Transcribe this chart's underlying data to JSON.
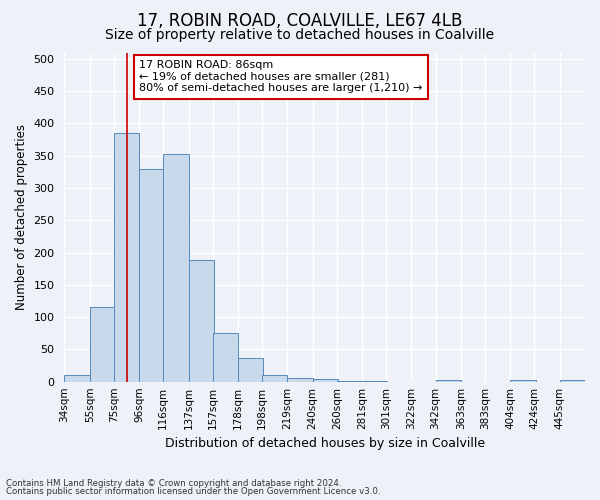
{
  "title1": "17, ROBIN ROAD, COALVILLE, LE67 4LB",
  "title2": "Size of property relative to detached houses in Coalville",
  "xlabel": "Distribution of detached houses by size in Coalville",
  "ylabel": "Number of detached properties",
  "bins": [
    34,
    55,
    75,
    96,
    116,
    137,
    157,
    178,
    198,
    219,
    240,
    260,
    281,
    301,
    322,
    342,
    363,
    383,
    404,
    424,
    445
  ],
  "values": [
    10,
    115,
    385,
    330,
    352,
    188,
    75,
    37,
    10,
    6,
    4,
    1,
    1,
    0,
    0,
    2,
    0,
    0,
    2,
    0,
    2
  ],
  "bar_color": "#c9d9ec",
  "bar_edge_color": "#5588bb",
  "vline_x": 86,
  "vline_color": "#cc0000",
  "ylim": [
    0,
    510
  ],
  "yticks": [
    0,
    50,
    100,
    150,
    200,
    250,
    300,
    350,
    400,
    450,
    500
  ],
  "annotation_text": "17 ROBIN ROAD: 86sqm\n← 19% of detached houses are smaller (281)\n80% of semi-detached houses are larger (1,210) →",
  "annotation_box_color": "#ffffff",
  "annotation_box_edge": "#cc0000",
  "footnote1": "Contains HM Land Registry data © Crown copyright and database right 2024.",
  "footnote2": "Contains public sector information licensed under the Open Government Licence v3.0.",
  "bg_color": "#eef2f8",
  "plot_bg_color": "#eef2f8",
  "grid_color": "#ffffff",
  "title1_fontsize": 12,
  "title2_fontsize": 10
}
